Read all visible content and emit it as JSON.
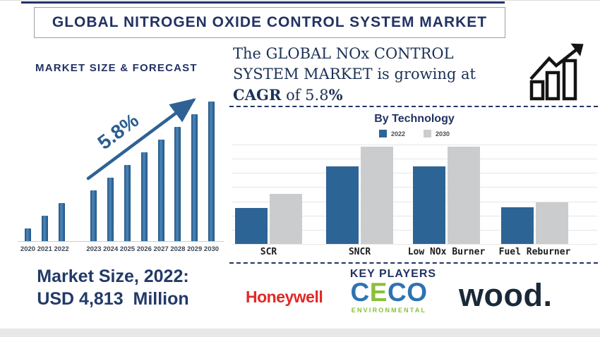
{
  "header": {
    "title": "GLOBAL NITROGEN OXIDE CONTROL SYSTEM MARKET"
  },
  "left_panel": {
    "heading": "MARKET SIZE & FORECAST",
    "growth_label": "5.8%",
    "market_size": "Market Size, 2022:\nUSD 4,813  Million"
  },
  "right_panel": {
    "paragraph": {
      "normal1": "The GLOBAL NOx CONTROL\nSYSTEM MARKET is growing at\n",
      "bold1": "CAGR",
      "normal2": " of 5.8",
      "bold2": "%"
    },
    "growth_icon": "growth-chart-icon"
  },
  "key_players": {
    "heading": "KEY PLAYERS",
    "honeywell": {
      "text": "Honeywell",
      "color": "#e02a26"
    },
    "ceco": {
      "letters": [
        "C",
        "E",
        "C",
        "O"
      ],
      "letter_colors": [
        "#2d73b4",
        "#8cbf3c",
        "#2d73b4",
        "#2d73b4"
      ],
      "subtext": "ENVIRONMENTAL",
      "subtext_color": "#8cbf3c"
    },
    "wood": {
      "text": "wood.",
      "color": "#19293a"
    }
  },
  "chart_data": [
    {
      "type": "bar",
      "title": "MARKET SIZE & FORECAST",
      "categories": [
        "2020",
        "2021",
        "2022",
        "2023",
        "2024",
        "2025",
        "2026",
        "2027",
        "2028",
        "2029",
        "2030"
      ],
      "values": [
        18,
        36,
        54,
        72,
        90,
        108,
        126,
        144,
        162,
        180,
        198
      ],
      "ylabel": "",
      "xlabel": "",
      "unit": "relative height (no y-axis shown)",
      "annotation": "5.8% growth arrow",
      "bar_color": "#2e6295",
      "grid": false,
      "legend_position": "none"
    },
    {
      "type": "bar",
      "title": "By Technology",
      "categories": [
        "SCR",
        "SNCR",
        "Low NOx Burner",
        "Fuel Reburner"
      ],
      "series": [
        {
          "name": "2022",
          "color": "#2d6496",
          "values": [
            51,
            110,
            110,
            52
          ]
        },
        {
          "name": "2030",
          "color": "#cbcccd",
          "values": [
            71,
            138,
            138,
            59
          ]
        }
      ],
      "unit": "relative height (no y-axis shown)",
      "legend_position": "top",
      "grid": true
    }
  ],
  "colors": {
    "navy": "#223263",
    "steel_blue": "#2d6295",
    "bar_gray": "#cbcccd",
    "grid_line": "#e6e6e6",
    "honeywell_red": "#e02a26",
    "ceco_blue": "#2d73b4",
    "ceco_green": "#8cbf3c",
    "wood_navy": "#19293a",
    "bottom_strip": "#e6e8ea"
  }
}
